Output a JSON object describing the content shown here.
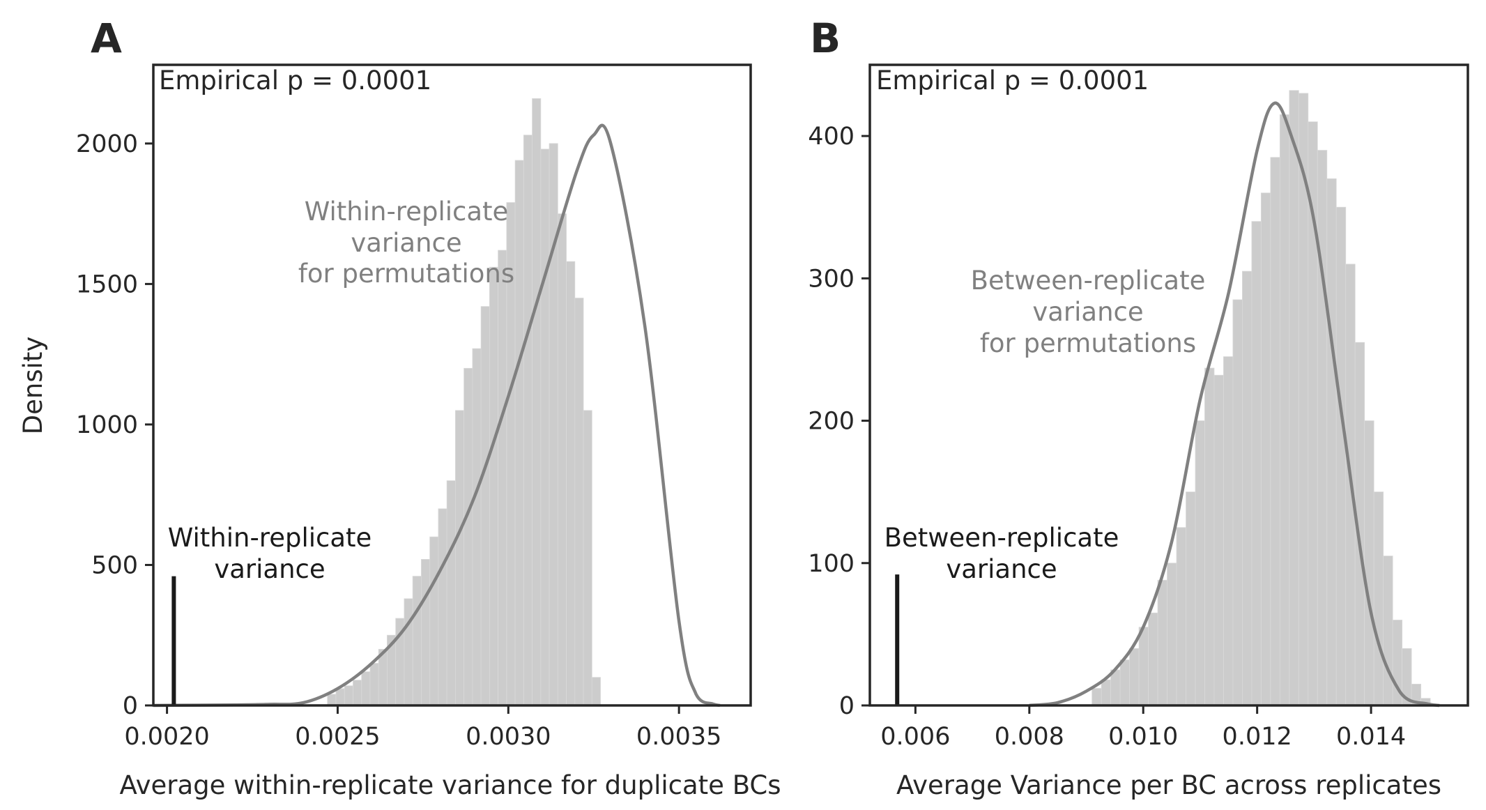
{
  "chart_data": [
    {
      "panel": "A",
      "type": "histogram",
      "xlabel": "Average within-replicate variance for duplicate BCs",
      "ylabel": "Density",
      "xlim": [
        0.00196,
        0.00371
      ],
      "ylim": [
        0,
        2280
      ],
      "xticks": [
        0.002,
        0.0025,
        0.003,
        0.0035
      ],
      "xtick_labels": [
        "0.0020",
        "0.0025",
        "0.0030",
        "0.0035"
      ],
      "yticks": [
        0,
        500,
        1000,
        1500,
        2000
      ],
      "ytick_labels": [
        "0",
        "500",
        "1000",
        "1500",
        "2000"
      ],
      "annotation_top": "Empirical p = 0.0001",
      "annotation_dist": [
        "Within-replicate",
        "variance",
        "for permutations"
      ],
      "annotation_obs": [
        "Within-replicate",
        "variance"
      ],
      "observed_value": 0.00202,
      "observed_height": 460,
      "hist_bin_start": 0.00247,
      "hist_bin_width": 2.5e-05,
      "hist_values": [
        40,
        60,
        70,
        90,
        120,
        150,
        200,
        250,
        310,
        380,
        460,
        520,
        600,
        700,
        800,
        1050,
        1200,
        1270,
        1420,
        1560,
        1620,
        1790,
        1940,
        2030,
        2160,
        1980,
        2000,
        1750,
        1580,
        1450,
        1050,
        100
      ],
      "kde": [
        [
          0.00196,
          0
        ],
        [
          0.0022,
          2
        ],
        [
          0.0023,
          4
        ],
        [
          0.0024,
          10
        ],
        [
          0.0025,
          60
        ],
        [
          0.0026,
          150
        ],
        [
          0.0027,
          280
        ],
        [
          0.0028,
          480
        ],
        [
          0.0029,
          740
        ],
        [
          0.003,
          1100
        ],
        [
          0.0031,
          1500
        ],
        [
          0.0032,
          1900
        ],
        [
          0.00325,
          2030
        ],
        [
          0.0033,
          2000
        ],
        [
          0.0034,
          1350
        ],
        [
          0.0035,
          300
        ],
        [
          0.00355,
          40
        ],
        [
          0.0036,
          5
        ],
        [
          0.00362,
          0
        ]
      ],
      "hist_color": "#cccccc",
      "kde_color": "#808080",
      "observed_color": "#1a1a1a"
    },
    {
      "panel": "B",
      "type": "histogram",
      "xlabel": "Average Variance per BC across replicates",
      "ylabel": "",
      "xlim": [
        0.0052,
        0.0157
      ],
      "ylim": [
        0,
        450
      ],
      "xticks": [
        0.006,
        0.008,
        0.01,
        0.012,
        0.014
      ],
      "xtick_labels": [
        "0.006",
        "0.008",
        "0.010",
        "0.012",
        "0.014"
      ],
      "yticks": [
        0,
        100,
        200,
        300,
        400
      ],
      "ytick_labels": [
        "0",
        "100",
        "200",
        "300",
        "400"
      ],
      "annotation_top": "Empirical p = 0.0001",
      "annotation_dist": [
        "Between-replicate",
        "variance",
        "for permutations"
      ],
      "annotation_obs": [
        "Between-replicate",
        "variance"
      ],
      "observed_value": 0.00568,
      "observed_height": 92,
      "hist_bin_start": 0.0091,
      "hist_bin_width": 0.000165,
      "hist_values": [
        12,
        18,
        25,
        32,
        40,
        55,
        65,
        88,
        100,
        125,
        150,
        200,
        237,
        232,
        245,
        285,
        305,
        340,
        360,
        385,
        415,
        432,
        430,
        410,
        390,
        370,
        350,
        310,
        255,
        200,
        150,
        105,
        60,
        40,
        15,
        5
      ],
      "kde": [
        [
          0.008,
          0
        ],
        [
          0.0085,
          2
        ],
        [
          0.009,
          10
        ],
        [
          0.0095,
          25
        ],
        [
          0.01,
          55
        ],
        [
          0.0105,
          115
        ],
        [
          0.011,
          215
        ],
        [
          0.0115,
          290
        ],
        [
          0.012,
          390
        ],
        [
          0.0123,
          423
        ],
        [
          0.0126,
          400
        ],
        [
          0.013,
          340
        ],
        [
          0.0135,
          200
        ],
        [
          0.014,
          65
        ],
        [
          0.0145,
          10
        ],
        [
          0.015,
          1
        ],
        [
          0.0152,
          0
        ]
      ],
      "hist_color": "#cccccc",
      "kde_color": "#808080",
      "observed_color": "#1a1a1a"
    }
  ]
}
